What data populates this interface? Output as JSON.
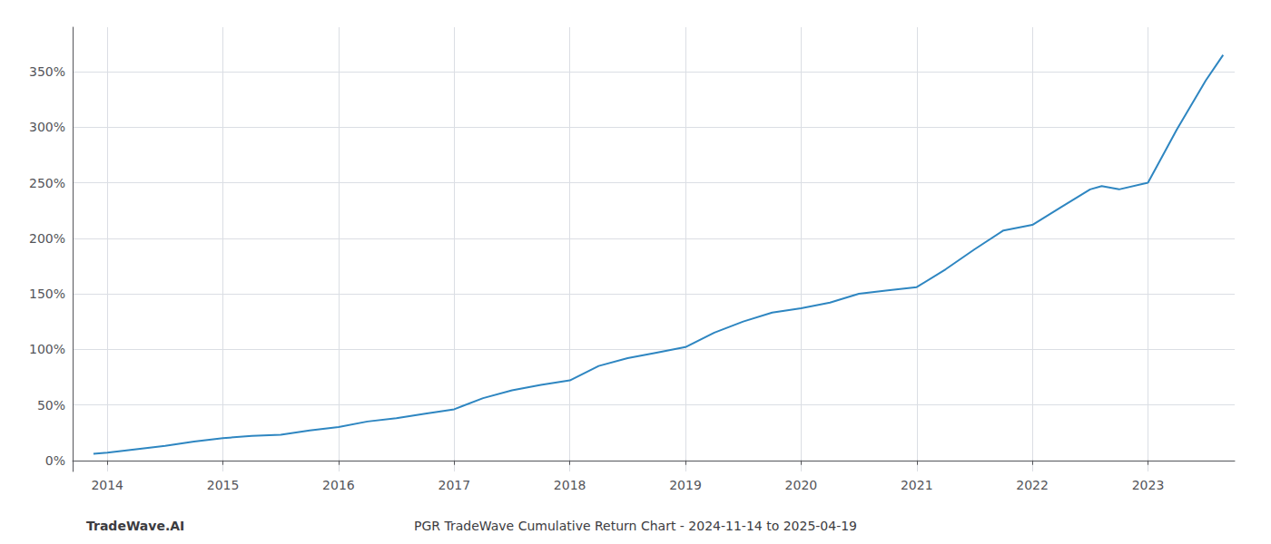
{
  "chart_data": {
    "type": "line",
    "title": "PGR TradeWave Cumulative Return Chart - 2024-11-14 to 2025-04-19",
    "annotations": [
      "TradeWave.AI"
    ],
    "color": "#2e86c1",
    "grid": true,
    "x": [
      2013.88,
      2014.0,
      2014.25,
      2014.5,
      2014.75,
      2015.0,
      2015.25,
      2015.5,
      2015.75,
      2016.0,
      2016.25,
      2016.5,
      2016.75,
      2017.0,
      2017.25,
      2017.5,
      2017.75,
      2018.0,
      2018.25,
      2018.5,
      2018.75,
      2019.0,
      2019.25,
      2019.5,
      2019.75,
      2020.0,
      2020.25,
      2020.5,
      2020.75,
      2021.0,
      2021.25,
      2021.5,
      2021.75,
      2022.0,
      2022.25,
      2022.5,
      2022.6,
      2022.75,
      2023.0,
      2023.25,
      2023.5,
      2023.65
    ],
    "values": [
      0.06,
      0.07,
      0.1,
      0.13,
      0.17,
      0.2,
      0.22,
      0.23,
      0.27,
      0.3,
      0.35,
      0.38,
      0.42,
      0.46,
      0.56,
      0.63,
      0.68,
      0.72,
      0.85,
      0.92,
      0.97,
      1.02,
      1.15,
      1.25,
      1.33,
      1.37,
      1.42,
      1.5,
      1.53,
      1.56,
      1.72,
      1.9,
      2.07,
      2.12,
      2.28,
      2.44,
      2.47,
      2.44,
      2.5,
      2.98,
      3.42,
      3.65
    ],
    "xlim": [
      2013.7,
      2023.75
    ],
    "xticks": [
      2014,
      2015,
      2016,
      2017,
      2018,
      2019,
      2020,
      2021,
      2022,
      2023
    ],
    "ylim": [
      -0.1,
      3.9
    ],
    "yticks": [
      {
        "value": 0.0,
        "label": "0%"
      },
      {
        "value": 0.5,
        "label": "50%"
      },
      {
        "value": 1.0,
        "label": "100%"
      },
      {
        "value": 1.5,
        "label": "150%"
      },
      {
        "value": 2.0,
        "label": "200%"
      },
      {
        "value": 2.5,
        "label": "250%"
      },
      {
        "value": 3.0,
        "label": "300%"
      },
      {
        "value": 3.5,
        "label": "350%"
      }
    ]
  }
}
